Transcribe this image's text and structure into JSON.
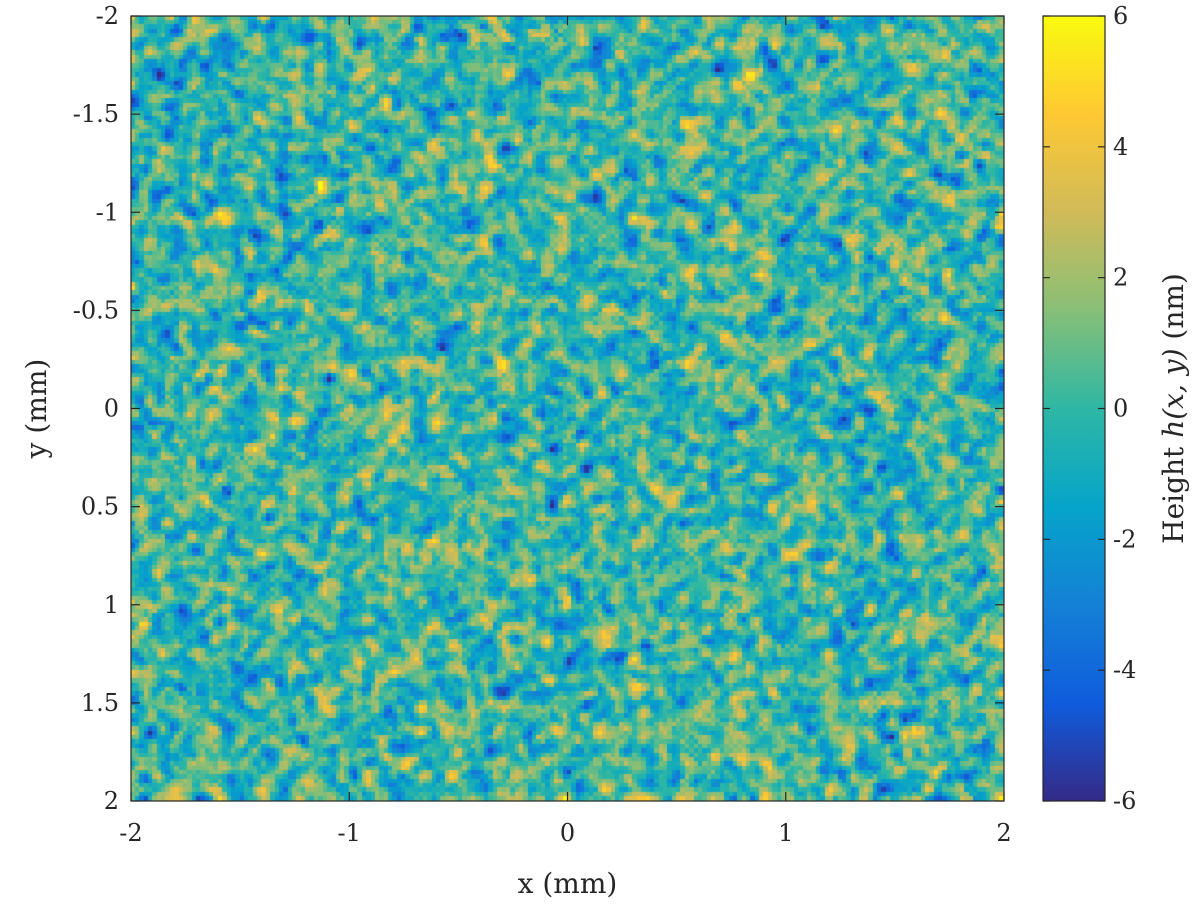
{
  "chart_data": {
    "type": "heatmap",
    "title": "",
    "xlabel": "x (mm)",
    "ylabel": "y (mm)",
    "xlim": [
      -2,
      2
    ],
    "ylim": [
      -2,
      2
    ],
    "y_direction": "reversed",
    "x_ticks": [
      -2,
      -1,
      0,
      1,
      2
    ],
    "x_tick_labels": [
      "-2",
      "-1",
      "0",
      "1",
      "2"
    ],
    "y_ticks": [
      -2,
      -1.5,
      -1,
      -0.5,
      0,
      0.5,
      1,
      1.5,
      2
    ],
    "y_tick_labels": [
      "-2",
      "-1.5",
      "-1",
      "-0.5",
      "0",
      "0.5",
      "1",
      "1.5",
      "2"
    ],
    "grid": false,
    "colorbar": {
      "label_prefix": "Height ",
      "label_math": "h(x, y)",
      "label_suffix": " (nm)",
      "limits": [
        -6,
        6
      ],
      "ticks": [
        -6,
        -4,
        -2,
        0,
        2,
        4,
        6
      ],
      "tick_labels": [
        "-6",
        "-4",
        "-2",
        "0",
        "2",
        "4",
        "6"
      ],
      "colormap": "parula",
      "colormap_stops": [
        "#352a87",
        "#0f5cdd",
        "#1481d6",
        "#06a4ca",
        "#2eb7a4",
        "#87bf77",
        "#d1bb59",
        "#fec832",
        "#f9fb0e"
      ],
      "placement": "right"
    },
    "field": {
      "description_of_values": "random rough surface height map, values mostly within about -4 to 4 nm",
      "grid_size": [
        200,
        180
      ],
      "mean": 0,
      "std": 1.6
    }
  }
}
